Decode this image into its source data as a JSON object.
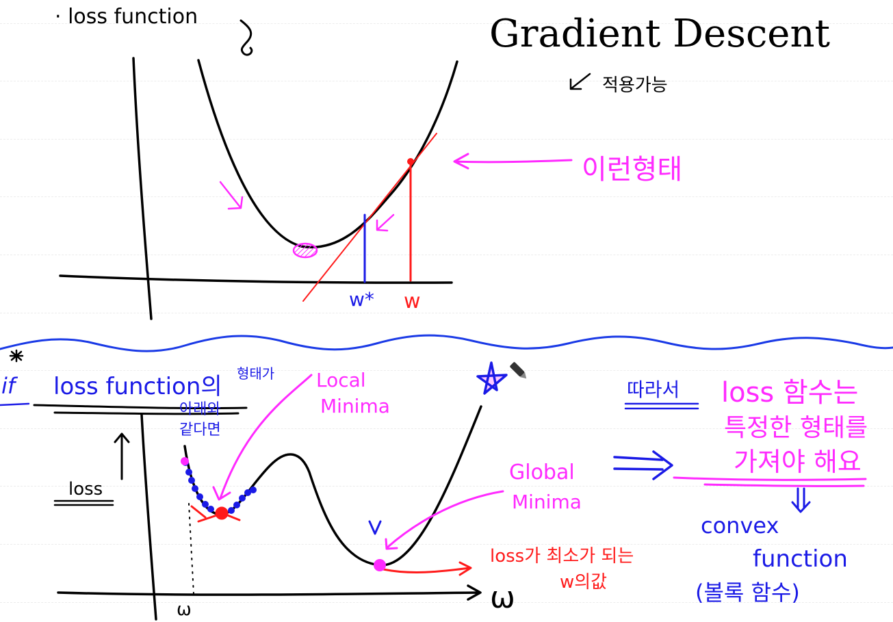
{
  "colors": {
    "ink_black": "#000000",
    "ink_blue": "#1a1ae6",
    "ink_magenta": "#ff2aff",
    "ink_red": "#ff1a1a",
    "wave_blue": "#1a3ae6"
  },
  "top": {
    "bullet_label": "· loss function",
    "title": "Gradient Descent",
    "applicable_note": "적용가능",
    "shape_note": "이런형태",
    "w_star_label": "w*",
    "w_label": "w"
  },
  "bottom": {
    "star_marker": "*",
    "if_label": "if",
    "condition_text": "loss function의",
    "condition_shape": "형태가",
    "condition_line2": "아래와",
    "condition_line3": "같다면",
    "loss_axis_label": "loss",
    "local_minima_label": [
      "Local",
      "Minima"
    ],
    "global_minima_label": [
      "Global",
      "Minima"
    ],
    "v_mark": "V",
    "min_loss_note": [
      "loss가 최소가 되는",
      "w의값"
    ],
    "w_axis_label": "ω",
    "w_tick_label": "ω",
    "therefore_label": "따라서",
    "conclusion": [
      "loss 함수는",
      "특정한 형태를",
      "가져야 해요"
    ],
    "convex_label": [
      "convex",
      "function"
    ],
    "convex_korean": "(볼록 함수)"
  }
}
